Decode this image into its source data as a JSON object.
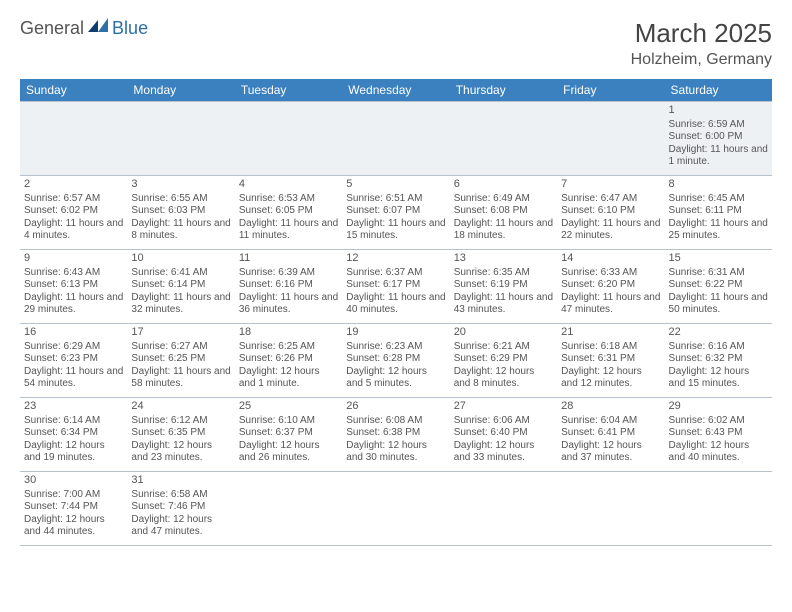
{
  "brand": {
    "part1": "General",
    "part2": "Blue"
  },
  "title": "March 2025",
  "location": "Holzheim, Germany",
  "colors": {
    "header_bg": "#3b80bf",
    "header_fg": "#ffffff",
    "border": "#b8c2cc",
    "shade": "#eef1f3",
    "text": "#555555",
    "brand_blue": "#2f6fa8"
  },
  "columns": [
    "Sunday",
    "Monday",
    "Tuesday",
    "Wednesday",
    "Thursday",
    "Friday",
    "Saturday"
  ],
  "weeks": [
    [
      null,
      null,
      null,
      null,
      null,
      null,
      {
        "n": "1",
        "sr": "Sunrise: 6:59 AM",
        "ss": "Sunset: 6:00 PM",
        "dl": "Daylight: 11 hours and 1 minute."
      }
    ],
    [
      {
        "n": "2",
        "sr": "Sunrise: 6:57 AM",
        "ss": "Sunset: 6:02 PM",
        "dl": "Daylight: 11 hours and 4 minutes."
      },
      {
        "n": "3",
        "sr": "Sunrise: 6:55 AM",
        "ss": "Sunset: 6:03 PM",
        "dl": "Daylight: 11 hours and 8 minutes."
      },
      {
        "n": "4",
        "sr": "Sunrise: 6:53 AM",
        "ss": "Sunset: 6:05 PM",
        "dl": "Daylight: 11 hours and 11 minutes."
      },
      {
        "n": "5",
        "sr": "Sunrise: 6:51 AM",
        "ss": "Sunset: 6:07 PM",
        "dl": "Daylight: 11 hours and 15 minutes."
      },
      {
        "n": "6",
        "sr": "Sunrise: 6:49 AM",
        "ss": "Sunset: 6:08 PM",
        "dl": "Daylight: 11 hours and 18 minutes."
      },
      {
        "n": "7",
        "sr": "Sunrise: 6:47 AM",
        "ss": "Sunset: 6:10 PM",
        "dl": "Daylight: 11 hours and 22 minutes."
      },
      {
        "n": "8",
        "sr": "Sunrise: 6:45 AM",
        "ss": "Sunset: 6:11 PM",
        "dl": "Daylight: 11 hours and 25 minutes."
      }
    ],
    [
      {
        "n": "9",
        "sr": "Sunrise: 6:43 AM",
        "ss": "Sunset: 6:13 PM",
        "dl": "Daylight: 11 hours and 29 minutes."
      },
      {
        "n": "10",
        "sr": "Sunrise: 6:41 AM",
        "ss": "Sunset: 6:14 PM",
        "dl": "Daylight: 11 hours and 32 minutes."
      },
      {
        "n": "11",
        "sr": "Sunrise: 6:39 AM",
        "ss": "Sunset: 6:16 PM",
        "dl": "Daylight: 11 hours and 36 minutes."
      },
      {
        "n": "12",
        "sr": "Sunrise: 6:37 AM",
        "ss": "Sunset: 6:17 PM",
        "dl": "Daylight: 11 hours and 40 minutes."
      },
      {
        "n": "13",
        "sr": "Sunrise: 6:35 AM",
        "ss": "Sunset: 6:19 PM",
        "dl": "Daylight: 11 hours and 43 minutes."
      },
      {
        "n": "14",
        "sr": "Sunrise: 6:33 AM",
        "ss": "Sunset: 6:20 PM",
        "dl": "Daylight: 11 hours and 47 minutes."
      },
      {
        "n": "15",
        "sr": "Sunrise: 6:31 AM",
        "ss": "Sunset: 6:22 PM",
        "dl": "Daylight: 11 hours and 50 minutes."
      }
    ],
    [
      {
        "n": "16",
        "sr": "Sunrise: 6:29 AM",
        "ss": "Sunset: 6:23 PM",
        "dl": "Daylight: 11 hours and 54 minutes."
      },
      {
        "n": "17",
        "sr": "Sunrise: 6:27 AM",
        "ss": "Sunset: 6:25 PM",
        "dl": "Daylight: 11 hours and 58 minutes."
      },
      {
        "n": "18",
        "sr": "Sunrise: 6:25 AM",
        "ss": "Sunset: 6:26 PM",
        "dl": "Daylight: 12 hours and 1 minute."
      },
      {
        "n": "19",
        "sr": "Sunrise: 6:23 AM",
        "ss": "Sunset: 6:28 PM",
        "dl": "Daylight: 12 hours and 5 minutes."
      },
      {
        "n": "20",
        "sr": "Sunrise: 6:21 AM",
        "ss": "Sunset: 6:29 PM",
        "dl": "Daylight: 12 hours and 8 minutes."
      },
      {
        "n": "21",
        "sr": "Sunrise: 6:18 AM",
        "ss": "Sunset: 6:31 PM",
        "dl": "Daylight: 12 hours and 12 minutes."
      },
      {
        "n": "22",
        "sr": "Sunrise: 6:16 AM",
        "ss": "Sunset: 6:32 PM",
        "dl": "Daylight: 12 hours and 15 minutes."
      }
    ],
    [
      {
        "n": "23",
        "sr": "Sunrise: 6:14 AM",
        "ss": "Sunset: 6:34 PM",
        "dl": "Daylight: 12 hours and 19 minutes."
      },
      {
        "n": "24",
        "sr": "Sunrise: 6:12 AM",
        "ss": "Sunset: 6:35 PM",
        "dl": "Daylight: 12 hours and 23 minutes."
      },
      {
        "n": "25",
        "sr": "Sunrise: 6:10 AM",
        "ss": "Sunset: 6:37 PM",
        "dl": "Daylight: 12 hours and 26 minutes."
      },
      {
        "n": "26",
        "sr": "Sunrise: 6:08 AM",
        "ss": "Sunset: 6:38 PM",
        "dl": "Daylight: 12 hours and 30 minutes."
      },
      {
        "n": "27",
        "sr": "Sunrise: 6:06 AM",
        "ss": "Sunset: 6:40 PM",
        "dl": "Daylight: 12 hours and 33 minutes."
      },
      {
        "n": "28",
        "sr": "Sunrise: 6:04 AM",
        "ss": "Sunset: 6:41 PM",
        "dl": "Daylight: 12 hours and 37 minutes."
      },
      {
        "n": "29",
        "sr": "Sunrise: 6:02 AM",
        "ss": "Sunset: 6:43 PM",
        "dl": "Daylight: 12 hours and 40 minutes."
      }
    ],
    [
      {
        "n": "30",
        "sr": "Sunrise: 7:00 AM",
        "ss": "Sunset: 7:44 PM",
        "dl": "Daylight: 12 hours and 44 minutes."
      },
      {
        "n": "31",
        "sr": "Sunrise: 6:58 AM",
        "ss": "Sunset: 7:46 PM",
        "dl": "Daylight: 12 hours and 47 minutes."
      },
      null,
      null,
      null,
      null,
      null
    ]
  ]
}
